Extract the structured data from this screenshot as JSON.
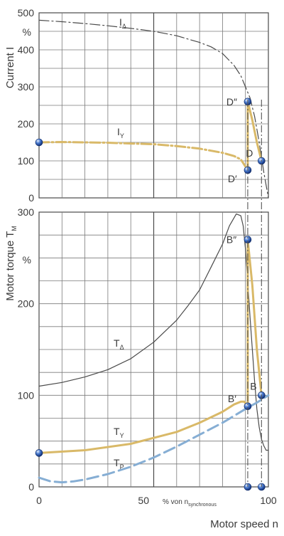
{
  "chart_data": [
    {
      "type": "line",
      "ylabel": "Current I",
      "yunit": "%",
      "ylim": [
        0,
        500
      ],
      "xlim": [
        0,
        100
      ],
      "yticks": [
        "500",
        "400",
        "300",
        "200",
        "100",
        "0"
      ],
      "grid": true,
      "series": [
        {
          "name": "IΔ",
          "style": "dash-dot",
          "color": "#4a4a4a",
          "x": [
            0,
            10,
            20,
            30,
            40,
            50,
            60,
            70,
            75,
            80,
            85,
            88,
            90,
            92,
            94,
            96,
            98,
            100
          ],
          "y": [
            480,
            476,
            471,
            465,
            458,
            450,
            438,
            420,
            408,
            390,
            358,
            330,
            300,
            270,
            220,
            150,
            70,
            0
          ]
        },
        {
          "name": "IY",
          "style": "dash-dot",
          "color": "#d9b968",
          "x": [
            0,
            10,
            20,
            30,
            40,
            50,
            60,
            70,
            80,
            85,
            88,
            91
          ],
          "y": [
            150,
            151,
            150,
            149,
            147,
            145,
            140,
            133,
            122,
            113,
            104,
            75
          ]
        }
      ],
      "switch_path": {
        "color": "#d9b968",
        "x": [
          91,
          91,
          93,
          95,
          97
        ],
        "y": [
          75,
          260,
          210,
          150,
          100
        ]
      },
      "points": [
        {
          "label": "",
          "x": 0,
          "y": 150
        },
        {
          "label": "D″",
          "x": 91,
          "y": 260
        },
        {
          "label": "D′",
          "x": 91,
          "y": 75
        },
        {
          "label": "D",
          "x": 97,
          "y": 100
        }
      ]
    },
    {
      "type": "line",
      "ylabel": "Motor torque T",
      "ylabel_sub": "M",
      "yunit": "%",
      "xlabel": "Motor speed n",
      "ylim": [
        0,
        300
      ],
      "xlim": [
        0,
        100
      ],
      "yticks": [
        "300",
        "200",
        "100",
        "0"
      ],
      "xticks": [
        "0",
        "50",
        "100"
      ],
      "xtick_note": "% von n",
      "xtick_note_sub": "synchronous",
      "grid": true,
      "series": [
        {
          "name": "TΔ",
          "style": "solid",
          "color": "#4a4a4a",
          "x": [
            0,
            10,
            20,
            30,
            40,
            50,
            60,
            65,
            70,
            75,
            80,
            83,
            86,
            88,
            89,
            90,
            91,
            92,
            93,
            94,
            95,
            96,
            97,
            98,
            99,
            100
          ],
          "y": [
            110,
            114,
            120,
            128,
            140,
            158,
            182,
            198,
            215,
            240,
            265,
            285,
            298,
            296,
            285,
            260,
            225,
            185,
            150,
            115,
            85,
            65,
            52,
            45,
            40,
            40
          ]
        },
        {
          "name": "TY",
          "style": "solid",
          "color": "#d9b968",
          "x": [
            0,
            20,
            40,
            60,
            70,
            80,
            85,
            88,
            89.5,
            91
          ],
          "y": [
            37,
            40,
            47,
            60,
            70,
            82,
            90,
            93,
            93,
            88
          ]
        },
        {
          "name": "TP",
          "style": "dash",
          "color": "#86aed4",
          "x": [
            0,
            5,
            10,
            15,
            20,
            30,
            40,
            50,
            60,
            70,
            80,
            90,
            95,
            100
          ],
          "y": [
            10,
            6,
            5,
            6,
            8,
            14,
            22,
            32,
            44,
            57,
            70,
            85,
            92,
            100
          ]
        }
      ],
      "switch_path": {
        "color": "#d9b968",
        "x": [
          91,
          91,
          93,
          95,
          97
        ],
        "y": [
          88,
          270,
          220,
          150,
          100
        ]
      },
      "points": [
        {
          "label": "",
          "x": 0,
          "y": 37
        },
        {
          "label": "B″",
          "x": 91,
          "y": 270
        },
        {
          "label": "B′",
          "x": 91,
          "y": 88
        },
        {
          "label": "B",
          "x": 97,
          "y": 100
        },
        {
          "label": "",
          "x": 91,
          "y": 0
        },
        {
          "label": "",
          "x": 97,
          "y": 0
        }
      ]
    }
  ]
}
